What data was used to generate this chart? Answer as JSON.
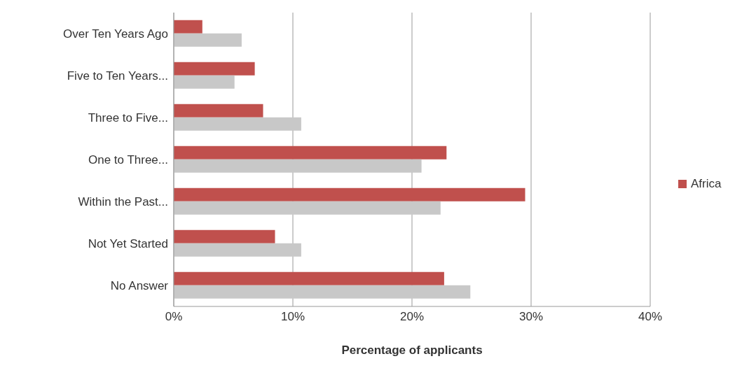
{
  "chart_data": {
    "type": "bar",
    "orientation": "horizontal",
    "xlabel": "Percentage of applicants",
    "categories": [
      "Over Ten Years Ago",
      "Five to Ten Years...",
      "Three to Five...",
      "One to Three...",
      "Within the Past...",
      "Not Yet Started",
      "No Answer"
    ],
    "series": [
      {
        "name": "Africa",
        "color": "#c0504d",
        "values": [
          2.4,
          6.8,
          7.5,
          22.9,
          29.5,
          8.5,
          22.7
        ]
      },
      {
        "color": "#c8c8c8",
        "values": [
          5.7,
          5.1,
          10.7,
          20.8,
          22.4,
          10.7,
          24.9
        ]
      }
    ],
    "xlim": [
      0,
      40
    ],
    "xticks": [
      {
        "value": 0,
        "label": "0%"
      },
      {
        "value": 10,
        "label": "10%"
      },
      {
        "value": 20,
        "label": "20%"
      },
      {
        "value": 30,
        "label": "30%"
      },
      {
        "value": 40,
        "label": "40%"
      }
    ],
    "grid": "x",
    "legend": "right"
  }
}
